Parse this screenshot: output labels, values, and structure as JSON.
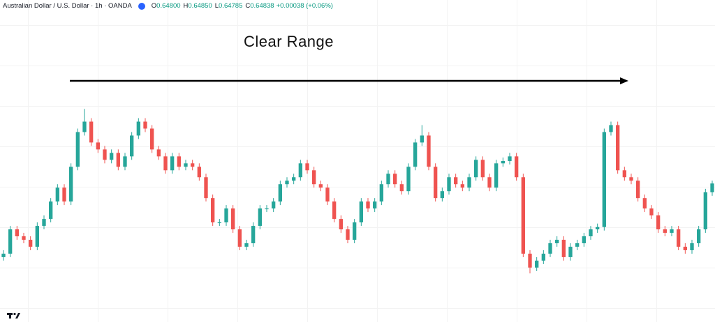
{
  "chart_data": {
    "type": "candlestick",
    "symbol": "Australian Dollar / U.S. Dollar · 1h · OANDA",
    "ohlc_header": [
      {
        "key": "O",
        "label": "0.64800"
      },
      {
        "key": "H",
        "label": "0.64850"
      },
      {
        "key": "L",
        "label": "0.64785"
      },
      {
        "key": "C",
        "label": "0.64838"
      }
    ],
    "change": "+0.00038 (+0.06%)",
    "annotation": "Clear Range",
    "up_color": "#26a69a",
    "down_color": "#ef5350",
    "ylim": [
      0.6424,
      0.6563
    ],
    "open": [
      0.6452,
      0.64535,
      0.6464,
      0.6461,
      0.64595,
      0.64565,
      0.64655,
      0.64685,
      0.6476,
      0.6482,
      0.6476,
      0.6491,
      0.6506,
      0.65105,
      0.65015,
      0.64985,
      0.6494,
      0.6497,
      0.6491,
      0.64955,
      0.65045,
      0.65105,
      0.65075,
      0.64985,
      0.64955,
      0.64895,
      0.64955,
      0.6491,
      0.64925,
      0.6491,
      0.64865,
      0.64775,
      0.6467,
      0.6467,
      0.6473,
      0.6464,
      0.64565,
      0.6458,
      0.64655,
      0.6473,
      0.6473,
      0.6476,
      0.64835,
      0.6485,
      0.64865,
      0.64925,
      0.64895,
      0.64835,
      0.6482,
      0.6476,
      0.64685,
      0.6464,
      0.64595,
      0.6467,
      0.6476,
      0.6473,
      0.6476,
      0.64835,
      0.6488,
      0.64835,
      0.64805,
      0.6491,
      0.65015,
      0.65045,
      0.6491,
      0.64775,
      0.64805,
      0.64865,
      0.64835,
      0.6482,
      0.64865,
      0.6494,
      0.64865,
      0.6482,
      0.64925,
      0.64935,
      0.64955,
      0.64865,
      0.64535,
      0.64475,
      0.64505,
      0.64535,
      0.6458,
      0.64595,
      0.6452,
      0.64565,
      0.6458,
      0.6461,
      0.6464,
      0.6465,
      0.6506,
      0.6509,
      0.64895,
      0.64865,
      0.6485,
      0.64775,
      0.6473,
      0.647,
      0.6464,
      0.64625,
      0.6464,
      0.64565,
      0.6455,
      0.6458,
      0.6464,
      0.648
    ],
    "high": [
      0.6455,
      0.64655,
      0.64655,
      0.64625,
      0.6461,
      0.6467,
      0.647,
      0.64775,
      0.64835,
      0.64835,
      0.64925,
      0.65075,
      0.6516,
      0.6512,
      0.6503,
      0.65,
      0.64985,
      0.64985,
      0.6497,
      0.6506,
      0.6512,
      0.6512,
      0.6509,
      0.65,
      0.6497,
      0.6497,
      0.6497,
      0.6494,
      0.6494,
      0.64925,
      0.6488,
      0.6479,
      0.64685,
      0.64745,
      0.64745,
      0.64655,
      0.64595,
      0.6467,
      0.64745,
      0.64745,
      0.64775,
      0.6485,
      0.64865,
      0.6488,
      0.6494,
      0.6494,
      0.6491,
      0.6485,
      0.64835,
      0.64775,
      0.647,
      0.64655,
      0.64685,
      0.64775,
      0.64775,
      0.64775,
      0.6485,
      0.64895,
      0.64895,
      0.6485,
      0.64925,
      0.6503,
      0.6509,
      0.6506,
      0.64925,
      0.6482,
      0.6488,
      0.6488,
      0.6485,
      0.6488,
      0.64955,
      0.64955,
      0.6488,
      0.6494,
      0.6495,
      0.6497,
      0.6497,
      0.6488,
      0.6455,
      0.6452,
      0.6455,
      0.64595,
      0.6461,
      0.6461,
      0.6458,
      0.64595,
      0.64625,
      0.64655,
      0.64665,
      0.65075,
      0.65105,
      0.65105,
      0.6491,
      0.6488,
      0.64865,
      0.6479,
      0.64745,
      0.64715,
      0.64655,
      0.64655,
      0.64655,
      0.6458,
      0.64595,
      0.64655,
      0.64815,
      0.6485
    ],
    "low": [
      0.64505,
      0.6452,
      0.64595,
      0.6458,
      0.6455,
      0.6455,
      0.6464,
      0.6467,
      0.64745,
      0.64745,
      0.64745,
      0.64895,
      0.65045,
      0.65,
      0.6497,
      0.64925,
      0.64925,
      0.64895,
      0.64895,
      0.6494,
      0.6503,
      0.6506,
      0.6497,
      0.6494,
      0.6488,
      0.6488,
      0.64895,
      0.64895,
      0.64895,
      0.6485,
      0.6476,
      0.64655,
      0.64655,
      0.64655,
      0.64625,
      0.6455,
      0.6455,
      0.64565,
      0.6464,
      0.64715,
      0.64715,
      0.64745,
      0.6482,
      0.64835,
      0.6485,
      0.6488,
      0.6482,
      0.64805,
      0.64745,
      0.6467,
      0.64625,
      0.6458,
      0.6458,
      0.64655,
      0.64715,
      0.64715,
      0.64745,
      0.6482,
      0.6482,
      0.6479,
      0.6479,
      0.64895,
      0.65,
      0.64895,
      0.6476,
      0.6476,
      0.6479,
      0.6482,
      0.64805,
      0.64805,
      0.6485,
      0.6485,
      0.64805,
      0.64805,
      0.6491,
      0.6492,
      0.6485,
      0.6452,
      0.6445,
      0.6446,
      0.6449,
      0.6452,
      0.64565,
      0.64505,
      0.64505,
      0.6455,
      0.64565,
      0.64595,
      0.64625,
      0.64635,
      0.65045,
      0.6488,
      0.6485,
      0.64835,
      0.6476,
      0.64715,
      0.64685,
      0.64625,
      0.6461,
      0.6461,
      0.6455,
      0.64535,
      0.64535,
      0.64565,
      0.64625,
      0.64785
    ],
    "close": [
      0.64535,
      0.6464,
      0.6461,
      0.64595,
      0.64565,
      0.64655,
      0.64685,
      0.6476,
      0.6482,
      0.6476,
      0.6491,
      0.6506,
      0.65105,
      0.65015,
      0.64985,
      0.6494,
      0.6497,
      0.6491,
      0.64955,
      0.65045,
      0.65105,
      0.65075,
      0.64985,
      0.64955,
      0.64895,
      0.64955,
      0.6491,
      0.64925,
      0.6491,
      0.64865,
      0.64775,
      0.6467,
      0.6467,
      0.6473,
      0.6464,
      0.64565,
      0.6458,
      0.64655,
      0.6473,
      0.6473,
      0.6476,
      0.64835,
      0.6485,
      0.64865,
      0.64925,
      0.64895,
      0.64835,
      0.6482,
      0.6476,
      0.64685,
      0.6464,
      0.64595,
      0.6467,
      0.6476,
      0.6473,
      0.6476,
      0.64835,
      0.6488,
      0.64835,
      0.64805,
      0.6491,
      0.65015,
      0.65045,
      0.6491,
      0.64775,
      0.64805,
      0.64865,
      0.64835,
      0.6482,
      0.64865,
      0.6494,
      0.64865,
      0.6482,
      0.64925,
      0.64935,
      0.64955,
      0.64865,
      0.64535,
      0.64475,
      0.64505,
      0.64535,
      0.6458,
      0.64595,
      0.6452,
      0.64565,
      0.6458,
      0.6461,
      0.6464,
      0.6465,
      0.6506,
      0.6509,
      0.64895,
      0.64865,
      0.6485,
      0.64775,
      0.6473,
      0.647,
      0.6464,
      0.64625,
      0.6464,
      0.64565,
      0.6455,
      0.6458,
      0.6464,
      0.648,
      0.64838
    ]
  }
}
